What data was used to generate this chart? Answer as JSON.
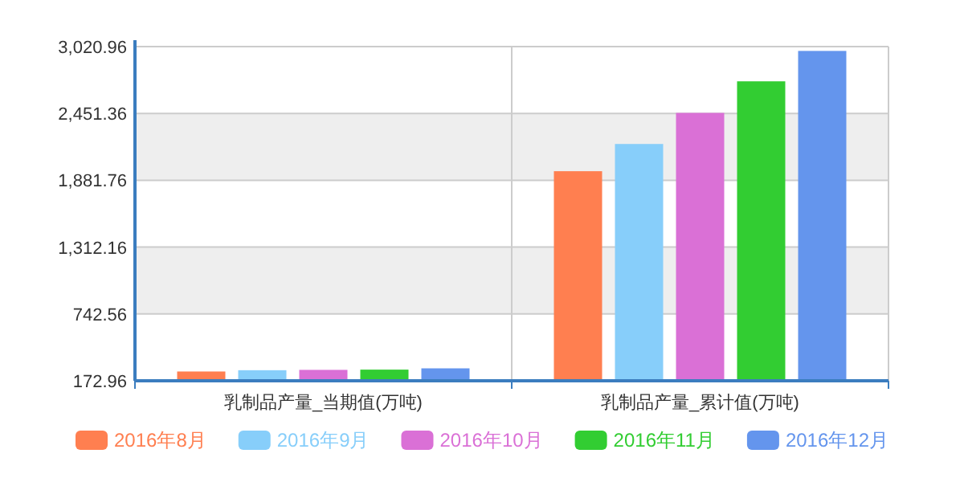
{
  "chart_data": {
    "type": "bar",
    "categories": [
      "乳制品产量_当期值(万吨)",
      "乳制品产量_累计值(万吨)"
    ],
    "series": [
      {
        "name": "2016年8月",
        "color": "#ff7f50",
        "values": [
          252,
          1959
        ]
      },
      {
        "name": "2016年9月",
        "color": "#87cefa",
        "values": [
          263,
          2191
        ]
      },
      {
        "name": "2016年10月",
        "color": "#da70d6",
        "values": [
          266,
          2456
        ]
      },
      {
        "name": "2016年11月",
        "color": "#32cd32",
        "values": [
          268,
          2725
        ]
      },
      {
        "name": "2016年12月",
        "color": "#6495ed",
        "values": [
          279,
          2984
        ]
      }
    ],
    "ylim": [
      172.96,
      3020.96
    ],
    "yticks": [
      172.96,
      {
        "value": 742.56,
        "label": "742.56"
      },
      {
        "value": 1312.16,
        "label": "1,312.16"
      },
      {
        "value": 1881.76,
        "label": "1,881.76"
      },
      {
        "value": 2451.36,
        "label": "2,451.36"
      },
      {
        "value": 3020.96,
        "label": "3,020.96"
      }
    ],
    "grid": true,
    "legend": "bottom"
  }
}
